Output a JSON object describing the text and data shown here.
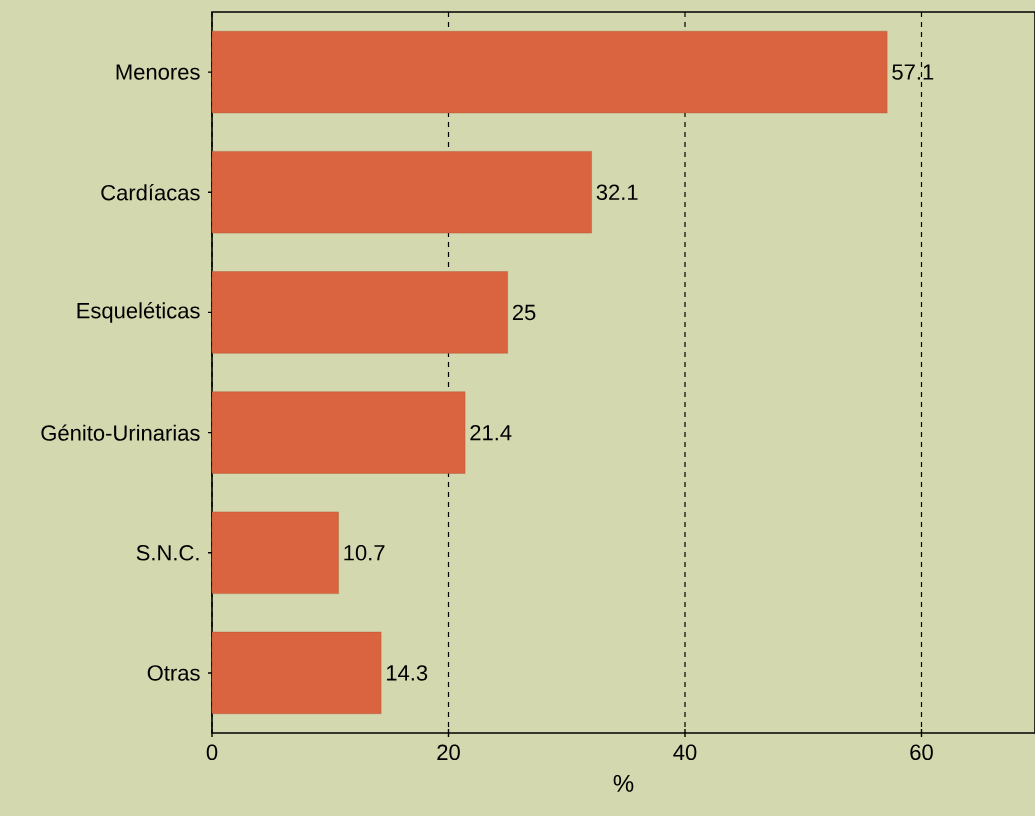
{
  "chart_data": {
    "type": "bar",
    "orientation": "horizontal",
    "xlabel": "%",
    "categories": [
      "Menores",
      "Cardíacas",
      "Esqueléticas",
      "Génito-Urinarias",
      "S.N.C.",
      "Otras"
    ],
    "values": [
      57.1,
      32.1,
      25,
      21.4,
      10.7,
      14.3
    ],
    "color": "#d9643f",
    "xlim": [
      0,
      69.6
    ],
    "xticks": [
      0,
      20,
      40,
      60
    ],
    "grid": "x",
    "data_labels": true
  }
}
